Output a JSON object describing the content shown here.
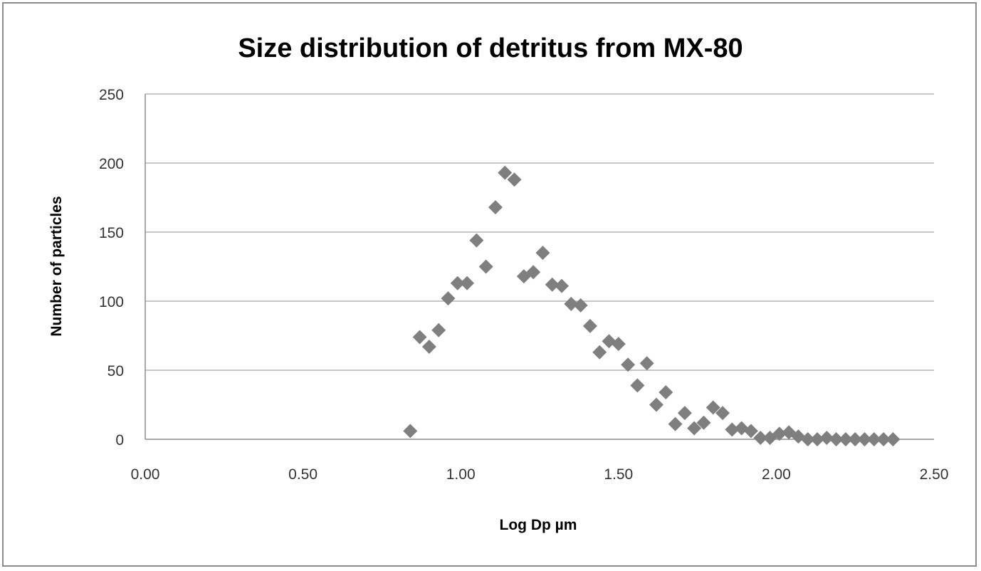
{
  "chart_data": {
    "type": "scatter",
    "title": "Size distribution of detritus from MX-80",
    "xlabel": "Log Dp µm",
    "ylabel": "Number of particles",
    "xlim": [
      0,
      2.5
    ],
    "ylim": [
      0,
      250
    ],
    "x_ticks": [
      "0.00",
      "0.50",
      "1.00",
      "1.50",
      "2.00",
      "2.50"
    ],
    "y_ticks": [
      "0",
      "50",
      "100",
      "150",
      "200",
      "250"
    ],
    "grid": "horizontal",
    "legend": "none",
    "marker": "diamond",
    "marker_color": "#7f7f7f",
    "series": [
      {
        "points": [
          [
            0.84,
            6
          ],
          [
            0.87,
            74
          ],
          [
            0.9,
            67
          ],
          [
            0.93,
            79
          ],
          [
            0.96,
            102
          ],
          [
            0.99,
            113
          ],
          [
            1.02,
            113
          ],
          [
            1.05,
            144
          ],
          [
            1.08,
            125
          ],
          [
            1.11,
            168
          ],
          [
            1.14,
            193
          ],
          [
            1.17,
            188
          ],
          [
            1.2,
            118
          ],
          [
            1.23,
            121
          ],
          [
            1.26,
            135
          ],
          [
            1.29,
            112
          ],
          [
            1.32,
            111
          ],
          [
            1.35,
            98
          ],
          [
            1.38,
            97
          ],
          [
            1.41,
            82
          ],
          [
            1.44,
            63
          ],
          [
            1.47,
            71
          ],
          [
            1.5,
            69
          ],
          [
            1.53,
            54
          ],
          [
            1.56,
            39
          ],
          [
            1.59,
            55
          ],
          [
            1.62,
            25
          ],
          [
            1.65,
            34
          ],
          [
            1.68,
            11
          ],
          [
            1.71,
            19
          ],
          [
            1.74,
            8
          ],
          [
            1.77,
            12
          ],
          [
            1.8,
            23
          ],
          [
            1.83,
            19
          ],
          [
            1.86,
            7
          ],
          [
            1.89,
            8
          ],
          [
            1.92,
            6
          ],
          [
            1.95,
            1
          ],
          [
            1.98,
            1
          ],
          [
            2.01,
            4
          ],
          [
            2.04,
            5
          ],
          [
            2.07,
            2
          ],
          [
            2.1,
            0
          ],
          [
            2.13,
            0
          ],
          [
            2.16,
            1
          ],
          [
            2.19,
            0
          ],
          [
            2.22,
            0
          ],
          [
            2.25,
            0
          ],
          [
            2.28,
            0
          ],
          [
            2.31,
            0
          ],
          [
            2.34,
            0
          ],
          [
            2.37,
            0
          ]
        ]
      }
    ]
  }
}
